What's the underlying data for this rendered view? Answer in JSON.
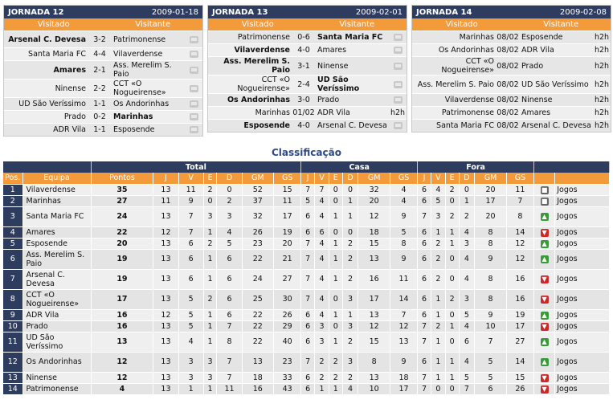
{
  "rounds": [
    {
      "title": "JORNADA 12",
      "date": "2009-01-18",
      "col_home": "Visitado",
      "col_away": "Visitante",
      "matches": [
        {
          "home": "Arsenal C. Devesa",
          "score": "3-2",
          "away": "Patrimonense",
          "bold": "home",
          "media": "tv"
        },
        {
          "home": "Santa Maria FC",
          "score": "4-4",
          "away": "Vilaverdense",
          "bold": "",
          "media": "tv"
        },
        {
          "home": "Amares",
          "score": "2-1",
          "away": "Ass. Merelim S. Paio",
          "bold": "home",
          "media": "tv"
        },
        {
          "home": "Ninense",
          "score": "2-2",
          "away": "CCT «O Nogueirense»",
          "bold": "",
          "media": "tv"
        },
        {
          "home": "UD São Veríssimo",
          "score": "1-1",
          "away": "Os Andorinhas",
          "bold": "",
          "media": "tv"
        },
        {
          "home": "Prado",
          "score": "0-2",
          "away": "Marinhas",
          "bold": "away",
          "media": "tv"
        },
        {
          "home": "ADR Vila",
          "score": "1-1",
          "away": "Esposende",
          "bold": "",
          "media": "tv"
        }
      ]
    },
    {
      "title": "JORNADA 13",
      "date": "2009-02-01",
      "col_home": "Visitado",
      "col_away": "Visitante",
      "matches": [
        {
          "home": "Patrimonense",
          "score": "0-6",
          "away": "Santa Maria FC",
          "bold": "away",
          "media": "tv"
        },
        {
          "home": "Vilaverdense",
          "score": "4-0",
          "away": "Amares",
          "bold": "home",
          "media": "tv"
        },
        {
          "home": "Ass. Merelim S. Paio",
          "score": "3-1",
          "away": "Ninense",
          "bold": "home",
          "media": "tv"
        },
        {
          "home": "CCT «O Nogueirense»",
          "score": "2-4",
          "away": "UD São Veríssimo",
          "bold": "away",
          "media": "tv"
        },
        {
          "home": "Os Andorinhas",
          "score": "3-0",
          "away": "Prado",
          "bold": "home",
          "media": "tv"
        },
        {
          "home": "Marinhas",
          "score": "01/02",
          "away": "ADR Vila",
          "bold": "",
          "media": "h2h"
        },
        {
          "home": "Esposende",
          "score": "4-0",
          "away": "Arsenal C. Devesa",
          "bold": "home",
          "media": "tv"
        }
      ]
    },
    {
      "title": "JORNADA 14",
      "date": "2009-02-08",
      "col_home": "Visitado",
      "col_away": "Visitante",
      "matches": [
        {
          "home": "Marinhas",
          "score": "08/02",
          "away": "Esposende",
          "bold": "",
          "media": "h2h"
        },
        {
          "home": "Os Andorinhas",
          "score": "08/02",
          "away": "ADR Vila",
          "bold": "",
          "media": "h2h"
        },
        {
          "home": "CCT «O Nogueirense»",
          "score": "08/02",
          "away": "Prado",
          "bold": "",
          "media": "h2h"
        },
        {
          "home": "Ass. Merelim S. Paio",
          "score": "08/02",
          "away": "UD São Veríssimo",
          "bold": "",
          "media": "h2h"
        },
        {
          "home": "Vilaverdense",
          "score": "08/02",
          "away": "Ninense",
          "bold": "",
          "media": "h2h"
        },
        {
          "home": "Patrimonense",
          "score": "08/02",
          "away": "Amares",
          "bold": "",
          "media": "h2h"
        },
        {
          "home": "Santa Maria FC",
          "score": "08/02",
          "away": "Arsenal C. Devesa",
          "bold": "",
          "media": "h2h"
        }
      ]
    }
  ],
  "standings": {
    "title": "Classificação",
    "groups": [
      "Total",
      "Casa",
      "Fora"
    ],
    "cols": [
      "Pos.",
      "Equipa",
      "Pontos",
      "J",
      "V",
      "E",
      "D",
      "GM",
      "GS",
      "J",
      "V",
      "E",
      "D",
      "GM",
      "GS",
      "J",
      "V",
      "E",
      "D",
      "GM",
      "GS"
    ],
    "link_label": "Jogos",
    "rows": [
      {
        "pos": "1",
        "team": "Vilaverdense",
        "pts": "35",
        "t": [
          "13",
          "11",
          "2",
          "0",
          "52",
          "15"
        ],
        "c": [
          "7",
          "7",
          "0",
          "0",
          "32",
          "4"
        ],
        "f": [
          "6",
          "4",
          "2",
          "0",
          "20",
          "11"
        ],
        "trend": "eq"
      },
      {
        "pos": "2",
        "team": "Marinhas",
        "pts": "27",
        "t": [
          "11",
          "9",
          "0",
          "2",
          "37",
          "11"
        ],
        "c": [
          "5",
          "4",
          "0",
          "1",
          "20",
          "4"
        ],
        "f": [
          "6",
          "5",
          "0",
          "1",
          "17",
          "7"
        ],
        "trend": "eq"
      },
      {
        "pos": "3",
        "team": "Santa Maria FC",
        "pts": "24",
        "t": [
          "13",
          "7",
          "3",
          "3",
          "32",
          "17"
        ],
        "c": [
          "6",
          "4",
          "1",
          "1",
          "12",
          "9"
        ],
        "f": [
          "7",
          "3",
          "2",
          "2",
          "20",
          "8"
        ],
        "trend": "up"
      },
      {
        "pos": "4",
        "team": "Amares",
        "pts": "22",
        "t": [
          "12",
          "7",
          "1",
          "4",
          "26",
          "19"
        ],
        "c": [
          "6",
          "6",
          "0",
          "0",
          "18",
          "5"
        ],
        "f": [
          "6",
          "1",
          "1",
          "4",
          "8",
          "14"
        ],
        "trend": "down"
      },
      {
        "pos": "5",
        "team": "Esposende",
        "pts": "20",
        "t": [
          "13",
          "6",
          "2",
          "5",
          "23",
          "20"
        ],
        "c": [
          "7",
          "4",
          "1",
          "2",
          "15",
          "8"
        ],
        "f": [
          "6",
          "2",
          "1",
          "3",
          "8",
          "12"
        ],
        "trend": "up"
      },
      {
        "pos": "6",
        "team": "Ass. Merelim S. Paio",
        "pts": "19",
        "t": [
          "13",
          "6",
          "1",
          "6",
          "22",
          "21"
        ],
        "c": [
          "7",
          "4",
          "1",
          "2",
          "13",
          "9"
        ],
        "f": [
          "6",
          "2",
          "0",
          "4",
          "9",
          "12"
        ],
        "trend": "up"
      },
      {
        "pos": "7",
        "team": "Arsenal C. Devesa",
        "pts": "19",
        "t": [
          "13",
          "6",
          "1",
          "6",
          "24",
          "27"
        ],
        "c": [
          "7",
          "4",
          "1",
          "2",
          "16",
          "11"
        ],
        "f": [
          "6",
          "2",
          "0",
          "4",
          "8",
          "16"
        ],
        "trend": "down"
      },
      {
        "pos": "8",
        "team": "CCT «O Nogueirense»",
        "pts": "17",
        "t": [
          "13",
          "5",
          "2",
          "6",
          "25",
          "30"
        ],
        "c": [
          "7",
          "4",
          "0",
          "3",
          "17",
          "14"
        ],
        "f": [
          "6",
          "1",
          "2",
          "3",
          "8",
          "16"
        ],
        "trend": "down"
      },
      {
        "pos": "9",
        "team": "ADR Vila",
        "pts": "16",
        "t": [
          "12",
          "5",
          "1",
          "6",
          "22",
          "26"
        ],
        "c": [
          "6",
          "4",
          "1",
          "1",
          "13",
          "7"
        ],
        "f": [
          "6",
          "1",
          "0",
          "5",
          "9",
          "19"
        ],
        "trend": "up"
      },
      {
        "pos": "10",
        "team": "Prado",
        "pts": "16",
        "t": [
          "13",
          "5",
          "1",
          "7",
          "22",
          "29"
        ],
        "c": [
          "6",
          "3",
          "0",
          "3",
          "12",
          "12"
        ],
        "f": [
          "7",
          "2",
          "1",
          "4",
          "10",
          "17"
        ],
        "trend": "down"
      },
      {
        "pos": "11",
        "team": "UD São Veríssimo",
        "pts": "13",
        "t": [
          "13",
          "4",
          "1",
          "8",
          "22",
          "40"
        ],
        "c": [
          "6",
          "3",
          "1",
          "2",
          "15",
          "13"
        ],
        "f": [
          "7",
          "1",
          "0",
          "6",
          "7",
          "27"
        ],
        "trend": "up"
      },
      {
        "pos": "12",
        "team": "Os Andorinhas",
        "pts": "12",
        "t": [
          "13",
          "3",
          "3",
          "7",
          "13",
          "23"
        ],
        "c": [
          "7",
          "2",
          "2",
          "3",
          "8",
          "9"
        ],
        "f": [
          "6",
          "1",
          "1",
          "4",
          "5",
          "14"
        ],
        "trend": "up"
      },
      {
        "pos": "13",
        "team": "Ninense",
        "pts": "12",
        "t": [
          "13",
          "3",
          "3",
          "7",
          "18",
          "33"
        ],
        "c": [
          "6",
          "2",
          "2",
          "2",
          "13",
          "18"
        ],
        "f": [
          "7",
          "1",
          "1",
          "5",
          "5",
          "15"
        ],
        "trend": "down"
      },
      {
        "pos": "14",
        "team": "Patrimonense",
        "pts": "4",
        "t": [
          "13",
          "1",
          "1",
          "11",
          "16",
          "43"
        ],
        "c": [
          "6",
          "1",
          "1",
          "4",
          "10",
          "17"
        ],
        "f": [
          "7",
          "0",
          "0",
          "7",
          "6",
          "26"
        ],
        "trend": "down"
      }
    ]
  }
}
